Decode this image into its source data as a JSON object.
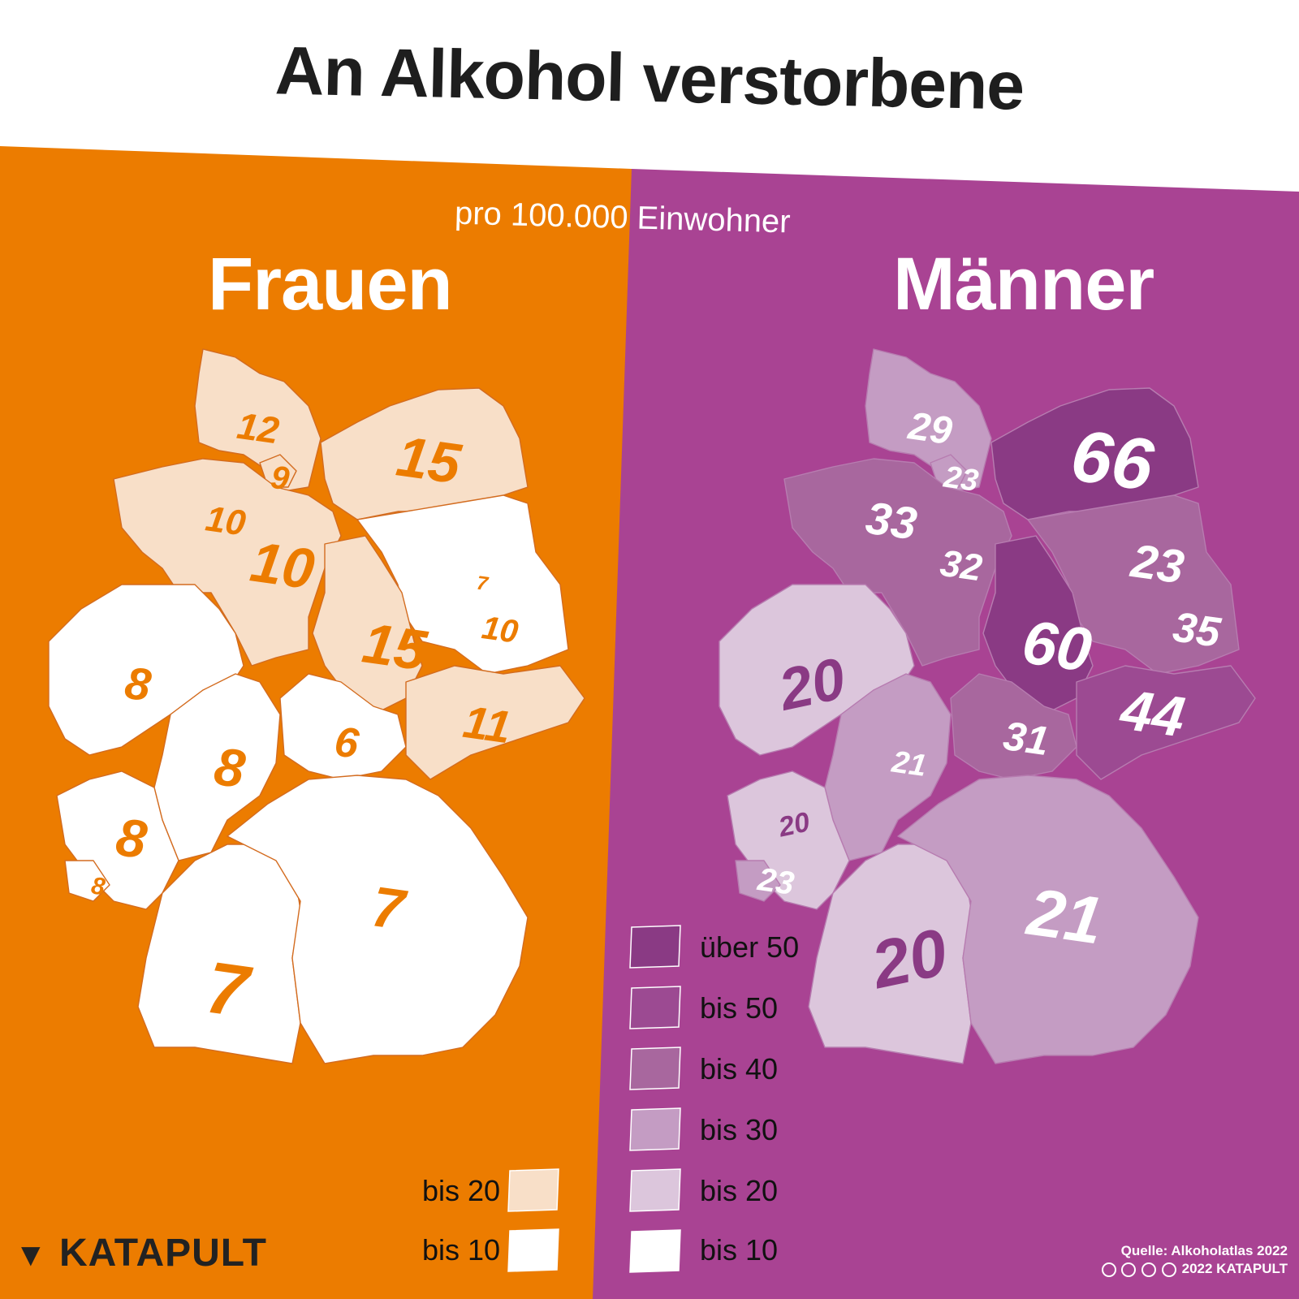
{
  "title": "An Alkohol verstorbene",
  "subtitle": "pro 100.000 Einwohner",
  "colors": {
    "frauen_bg": "#ec7c00",
    "maenner_bg": "#a94393",
    "frauen_bis20": "#f8dfc8",
    "frauen_bis10": "#ffffff",
    "frauen_label": "#ec7c00",
    "maenner_ueber50": "#8a3a84",
    "maenner_bis50": "#9c4a92",
    "maenner_bis40": "#a8679e",
    "maenner_bis30": "#c49cc3",
    "maenner_bis20": "#dcc6dc",
    "maenner_bis10": "#ffffff"
  },
  "frauen": {
    "title": "Frauen",
    "regions": [
      {
        "code": "SH",
        "value": "12",
        "class": "bis 20"
      },
      {
        "code": "HH",
        "value": "9",
        "class": "bis 20"
      },
      {
        "code": "MV",
        "value": "15",
        "class": "bis 20"
      },
      {
        "code": "HB",
        "value": "10",
        "class": "bis 20"
      },
      {
        "code": "NI",
        "value": "10",
        "class": "bis 20"
      },
      {
        "code": "BE",
        "value": "7",
        "class": "bis 10"
      },
      {
        "code": "BB",
        "value": "10",
        "class": "bis 10"
      },
      {
        "code": "ST",
        "value": "15",
        "class": "bis 20"
      },
      {
        "code": "NW",
        "value": "8",
        "class": "bis 10"
      },
      {
        "code": "HE",
        "value": "8",
        "class": "bis 10"
      },
      {
        "code": "TH",
        "value": "6",
        "class": "bis 10"
      },
      {
        "code": "SN",
        "value": "11",
        "class": "bis 20"
      },
      {
        "code": "RP",
        "value": "8",
        "class": "bis 10"
      },
      {
        "code": "SL",
        "value": "8",
        "class": "bis 10"
      },
      {
        "code": "BW",
        "value": "7",
        "class": "bis 10"
      },
      {
        "code": "BY",
        "value": "7",
        "class": "bis 10"
      }
    ],
    "legend": [
      {
        "label": "bis 20",
        "color": "#f8dfc8"
      },
      {
        "label": "bis 10",
        "color": "#ffffff"
      }
    ]
  },
  "maenner": {
    "title": "Männer",
    "regions": [
      {
        "code": "SH",
        "value": "29",
        "class": "bis 30"
      },
      {
        "code": "HH",
        "value": "23",
        "class": "bis 30"
      },
      {
        "code": "MV",
        "value": "66",
        "class": "über 50"
      },
      {
        "code": "HB",
        "value": "33",
        "class": "bis 40"
      },
      {
        "code": "NI",
        "value": "32",
        "class": "bis 40"
      },
      {
        "code": "BE",
        "value": "23",
        "class": "bis 30"
      },
      {
        "code": "BB",
        "value": "35",
        "class": "bis 40"
      },
      {
        "code": "ST",
        "value": "60",
        "class": "über 50"
      },
      {
        "code": "NW",
        "value": "20",
        "class": "bis 20"
      },
      {
        "code": "HE",
        "value": "21",
        "class": "bis 30"
      },
      {
        "code": "TH",
        "value": "31",
        "class": "bis 40"
      },
      {
        "code": "SN",
        "value": "44",
        "class": "bis 50"
      },
      {
        "code": "RP",
        "value": "20",
        "class": "bis 20"
      },
      {
        "code": "SL",
        "value": "23",
        "class": "bis 30"
      },
      {
        "code": "BW",
        "value": "20",
        "class": "bis 20"
      },
      {
        "code": "BY",
        "value": "21",
        "class": "bis 30"
      }
    ],
    "legend": [
      {
        "label": "über 50",
        "color": "#8a3a84"
      },
      {
        "label": "bis 50",
        "color": "#9c4a92"
      },
      {
        "label": "bis 40",
        "color": "#a8679e"
      },
      {
        "label": "bis 30",
        "color": "#c49cc3"
      },
      {
        "label": "bis 20",
        "color": "#dcc6dc"
      },
      {
        "label": "bis 10",
        "color": "#ffffff"
      }
    ]
  },
  "logo": "KATAPULT",
  "source_line1": "Quelle: Alkoholatlas 2022",
  "source_line2": "2022 KATAPULT"
}
